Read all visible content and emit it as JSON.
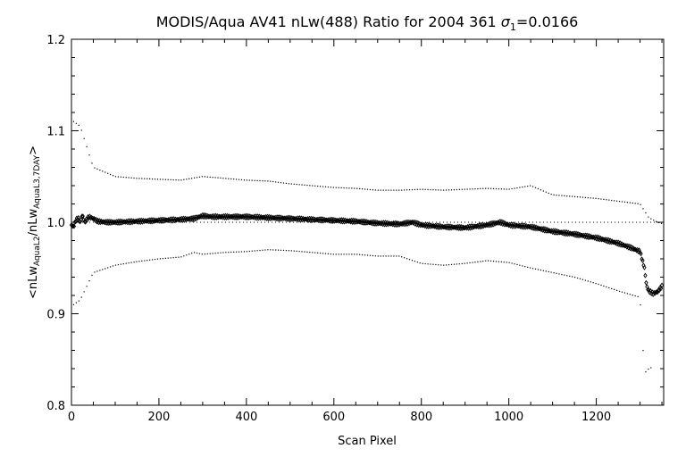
{
  "chart_data": {
    "type": "scatter",
    "title": {
      "prefix": "MODIS/Aqua AV41 nLw(488) Ratio for 2004 361 ",
      "sigma_symbol": "σ",
      "sigma_subscript": "1",
      "sigma_value": "=0.0166"
    },
    "xlabel": "Scan Pixel",
    "ylabel": {
      "open": "<nLw",
      "num_sub": "AquaL2",
      "mid": "/nLw",
      "den_sub": "AquaL3,7DAY",
      "close": ">"
    },
    "xlim": [
      0,
      1354
    ],
    "ylim": [
      0.8,
      1.2
    ],
    "x_ticks": [
      0,
      200,
      400,
      600,
      800,
      1000,
      1200
    ],
    "x_tick_labels": [
      "0",
      "200",
      "400",
      "600",
      "800",
      "1000",
      "1200"
    ],
    "y_ticks": [
      0.8,
      0.9,
      1.0,
      1.1,
      1.2
    ],
    "y_tick_labels": [
      "0.8",
      "0.9",
      "1.0",
      "1.1",
      "1.2"
    ],
    "reference_line": 1.0,
    "series": [
      {
        "role": "mean",
        "marker": "diamond",
        "points": [
          [
            0,
            0.997
          ],
          [
            5,
            0.995
          ],
          [
            10,
            1.002
          ],
          [
            15,
            1.005
          ],
          [
            20,
            1.0
          ],
          [
            25,
            1.008
          ],
          [
            30,
            1.0
          ],
          [
            35,
            1.003
          ],
          [
            40,
            1.006
          ],
          [
            50,
            1.004
          ],
          [
            60,
            1.001
          ],
          [
            80,
            1.0
          ],
          [
            100,
            1.0
          ],
          [
            150,
            1.001
          ],
          [
            200,
            1.002
          ],
          [
            250,
            1.003
          ],
          [
            280,
            1.004
          ],
          [
            300,
            1.007
          ],
          [
            320,
            1.006
          ],
          [
            350,
            1.006
          ],
          [
            400,
            1.006
          ],
          [
            450,
            1.005
          ],
          [
            500,
            1.004
          ],
          [
            550,
            1.003
          ],
          [
            600,
            1.002
          ],
          [
            650,
            1.001
          ],
          [
            700,
            0.999
          ],
          [
            750,
            0.998
          ],
          [
            780,
            1.0
          ],
          [
            800,
            0.997
          ],
          [
            850,
            0.995
          ],
          [
            900,
            0.994
          ],
          [
            950,
            0.997
          ],
          [
            980,
            1.0
          ],
          [
            1000,
            0.997
          ],
          [
            1050,
            0.995
          ],
          [
            1100,
            0.99
          ],
          [
            1150,
            0.987
          ],
          [
            1200,
            0.983
          ],
          [
            1250,
            0.977
          ],
          [
            1280,
            0.972
          ],
          [
            1300,
            0.968
          ],
          [
            1310,
            0.95
          ],
          [
            1315,
            0.93
          ],
          [
            1320,
            0.925
          ],
          [
            1330,
            0.922
          ],
          [
            1340,
            0.924
          ],
          [
            1350,
            0.93
          ]
        ]
      },
      {
        "role": "upper",
        "marker": "dot",
        "points": [
          [
            5,
            1.11
          ],
          [
            20,
            1.105
          ],
          [
            30,
            1.09
          ],
          [
            40,
            1.075
          ],
          [
            50,
            1.06
          ],
          [
            100,
            1.05
          ],
          [
            150,
            1.048
          ],
          [
            200,
            1.047
          ],
          [
            250,
            1.046
          ],
          [
            300,
            1.05
          ],
          [
            350,
            1.048
          ],
          [
            400,
            1.046
          ],
          [
            450,
            1.045
          ],
          [
            500,
            1.042
          ],
          [
            550,
            1.04
          ],
          [
            600,
            1.038
          ],
          [
            650,
            1.037
          ],
          [
            700,
            1.035
          ],
          [
            750,
            1.035
          ],
          [
            800,
            1.036
          ],
          [
            850,
            1.035
          ],
          [
            900,
            1.036
          ],
          [
            950,
            1.037
          ],
          [
            1000,
            1.036
          ],
          [
            1050,
            1.04
          ],
          [
            1100,
            1.03
          ],
          [
            1150,
            1.028
          ],
          [
            1200,
            1.026
          ],
          [
            1250,
            1.023
          ],
          [
            1300,
            1.02
          ],
          [
            1320,
            1.005
          ],
          [
            1340,
            1.0
          ],
          [
            1354,
            0.998
          ]
        ]
      },
      {
        "role": "lower",
        "marker": "dot",
        "points": [
          [
            5,
            0.91
          ],
          [
            20,
            0.915
          ],
          [
            30,
            0.925
          ],
          [
            40,
            0.935
          ],
          [
            50,
            0.945
          ],
          [
            100,
            0.953
          ],
          [
            150,
            0.957
          ],
          [
            200,
            0.96
          ],
          [
            250,
            0.962
          ],
          [
            280,
            0.967
          ],
          [
            300,
            0.965
          ],
          [
            350,
            0.967
          ],
          [
            400,
            0.968
          ],
          [
            450,
            0.97
          ],
          [
            500,
            0.969
          ],
          [
            550,
            0.967
          ],
          [
            600,
            0.965
          ],
          [
            650,
            0.965
          ],
          [
            700,
            0.963
          ],
          [
            750,
            0.963
          ],
          [
            800,
            0.955
          ],
          [
            850,
            0.953
          ],
          [
            900,
            0.955
          ],
          [
            950,
            0.958
          ],
          [
            1000,
            0.956
          ],
          [
            1050,
            0.95
          ],
          [
            1100,
            0.945
          ],
          [
            1150,
            0.94
          ],
          [
            1200,
            0.933
          ],
          [
            1250,
            0.925
          ],
          [
            1300,
            0.918
          ],
          [
            1310,
            0.835
          ],
          [
            1320,
            0.84
          ],
          [
            1330,
            0.842
          ]
        ]
      }
    ],
    "grid": false,
    "legend": "none"
  }
}
